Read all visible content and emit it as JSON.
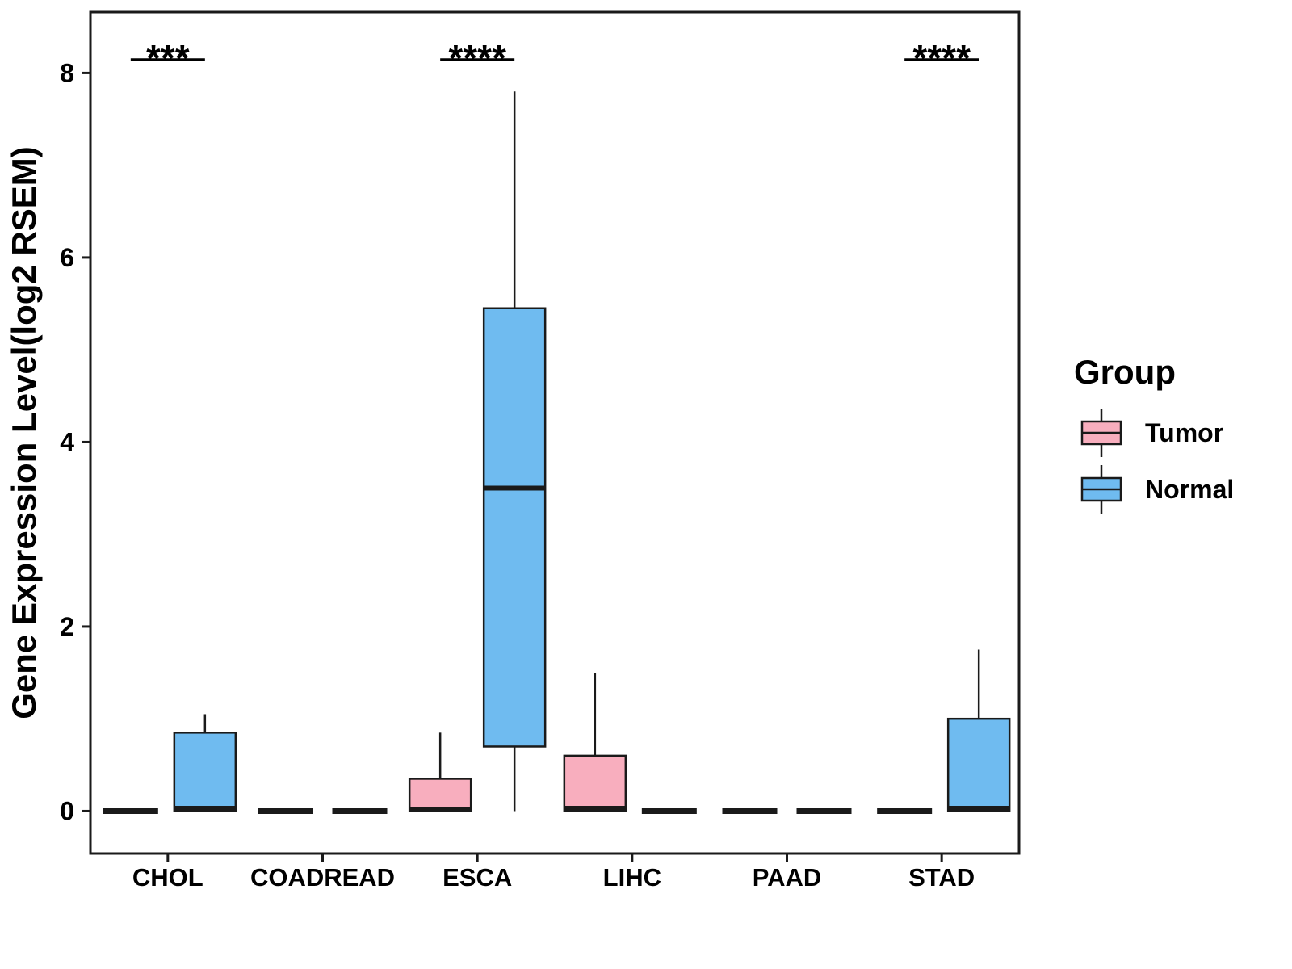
{
  "figure": {
    "background": "#FFFFFF"
  },
  "chart_data": {
    "type": "boxplot",
    "title": "",
    "xlabel": "",
    "ylabel": "Gene Expression Level(log2 RSEM)",
    "yticks": [
      0,
      2,
      4,
      6,
      8
    ],
    "ylim": [
      -0.46,
      8.66
    ],
    "grid": false,
    "categories": [
      "CHOL",
      "COADREAD",
      "ESCA",
      "LIHC",
      "PAAD",
      "STAD"
    ],
    "colors": {
      "tumor": "#F8AEBE",
      "normal": "#6FBBF0",
      "stroke": "#1A1A1A",
      "text": "#000000"
    },
    "series": [
      {
        "name": "Tumor",
        "color_key": "tumor",
        "boxes": [
          {
            "category": "CHOL",
            "min": 0,
            "q1": 0,
            "median": 0,
            "q3": 0,
            "max": 0
          },
          {
            "category": "COADREAD",
            "min": 0,
            "q1": 0,
            "median": 0,
            "q3": 0,
            "max": 0
          },
          {
            "category": "ESCA",
            "min": 0,
            "q1": 0,
            "median": 0.02,
            "q3": 0.35,
            "max": 0.85
          },
          {
            "category": "LIHC",
            "min": 0,
            "q1": 0,
            "median": 0.03,
            "q3": 0.6,
            "max": 1.5
          },
          {
            "category": "PAAD",
            "min": 0,
            "q1": 0,
            "median": 0,
            "q3": 0,
            "max": 0
          },
          {
            "category": "STAD",
            "min": 0,
            "q1": 0,
            "median": 0,
            "q3": 0,
            "max": 0
          }
        ]
      },
      {
        "name": "Normal",
        "color_key": "normal",
        "boxes": [
          {
            "category": "CHOL",
            "min": 0,
            "q1": 0,
            "median": 0.03,
            "q3": 0.85,
            "max": 1.05
          },
          {
            "category": "COADREAD",
            "min": 0,
            "q1": 0,
            "median": 0,
            "q3": 0,
            "max": 0
          },
          {
            "category": "ESCA",
            "min": 0,
            "q1": 0.7,
            "median": 3.5,
            "q3": 5.45,
            "max": 7.8
          },
          {
            "category": "LIHC",
            "min": 0,
            "q1": 0,
            "median": 0,
            "q3": 0,
            "max": 0
          },
          {
            "category": "PAAD",
            "min": 0,
            "q1": 0,
            "median": 0,
            "q3": 0,
            "max": 0
          },
          {
            "category": "STAD",
            "min": 0,
            "q1": 0,
            "median": 0.03,
            "q3": 1.0,
            "max": 1.75
          }
        ]
      }
    ],
    "significance": [
      {
        "category": "CHOL",
        "label": "***"
      },
      {
        "category": "ESCA",
        "label": "****"
      },
      {
        "category": "STAD",
        "label": "****"
      }
    ],
    "legend": {
      "title": "Group",
      "position": "right",
      "entries": [
        {
          "label": "Tumor",
          "color_key": "tumor"
        },
        {
          "label": "Normal",
          "color_key": "normal"
        }
      ]
    }
  }
}
